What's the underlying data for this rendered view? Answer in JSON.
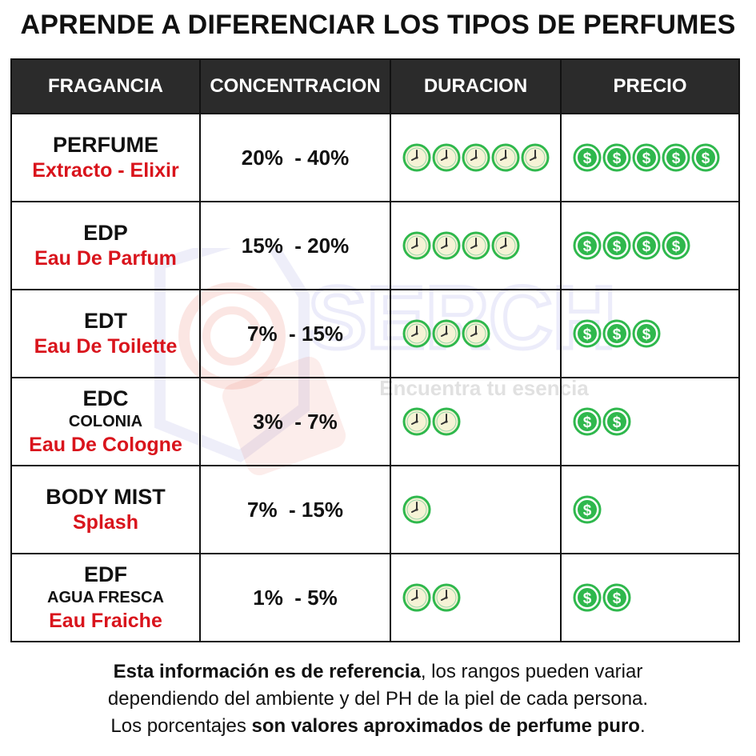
{
  "title": "APRENDE A DIFERENCIAR LOS TIPOS DE PERFUMES",
  "watermark": {
    "brand": "SERCH",
    "tagline": "Encuentra tu esencia"
  },
  "colors": {
    "header_bg": "#2b2b2b",
    "alias_red": "#d9141c",
    "icon_green": "#2fb84d",
    "clock_face": "#f6f3d6"
  },
  "icons": {
    "duration": "clock-icon",
    "price": "dollar-coin-icon"
  },
  "table": {
    "headers": [
      "FRAGANCIA",
      "CONCENTRACION",
      "DURACION",
      "PRECIO"
    ],
    "rows": [
      {
        "name": "PERFUME",
        "sub": "",
        "alias": "Extracto - Elixir",
        "concentration": "20%  - 40%",
        "duration": 5,
        "price": 5
      },
      {
        "name": "EDP",
        "sub": "",
        "alias": "Eau De Parfum",
        "concentration": "15%  - 20%",
        "duration": 4,
        "price": 4
      },
      {
        "name": "EDT",
        "sub": "",
        "alias": "Eau De Toilette",
        "concentration": "7%  - 15%",
        "duration": 3,
        "price": 3
      },
      {
        "name": "EDC",
        "sub": "COLONIA",
        "alias": "Eau De Cologne",
        "concentration": "3%  - 7%",
        "duration": 2,
        "price": 2
      },
      {
        "name": "BODY MIST",
        "sub": "",
        "alias": "Splash",
        "concentration": "7%  - 15%",
        "duration": 1,
        "price": 1
      },
      {
        "name": "EDF",
        "sub": "AGUA FRESCA",
        "alias": "Eau Fraiche",
        "concentration": "1%  - 5%",
        "duration": 2,
        "price": 2
      }
    ]
  },
  "footer": {
    "line1_bold": "Esta información es de referencia",
    "line1_rest": ", los rangos pueden variar",
    "line2": "dependiendo del ambiente y del PH de la piel de cada persona.",
    "line3_start": "Los porcentajes ",
    "line3_bold": "son valores aproximados de perfume puro",
    "line3_end": "."
  }
}
